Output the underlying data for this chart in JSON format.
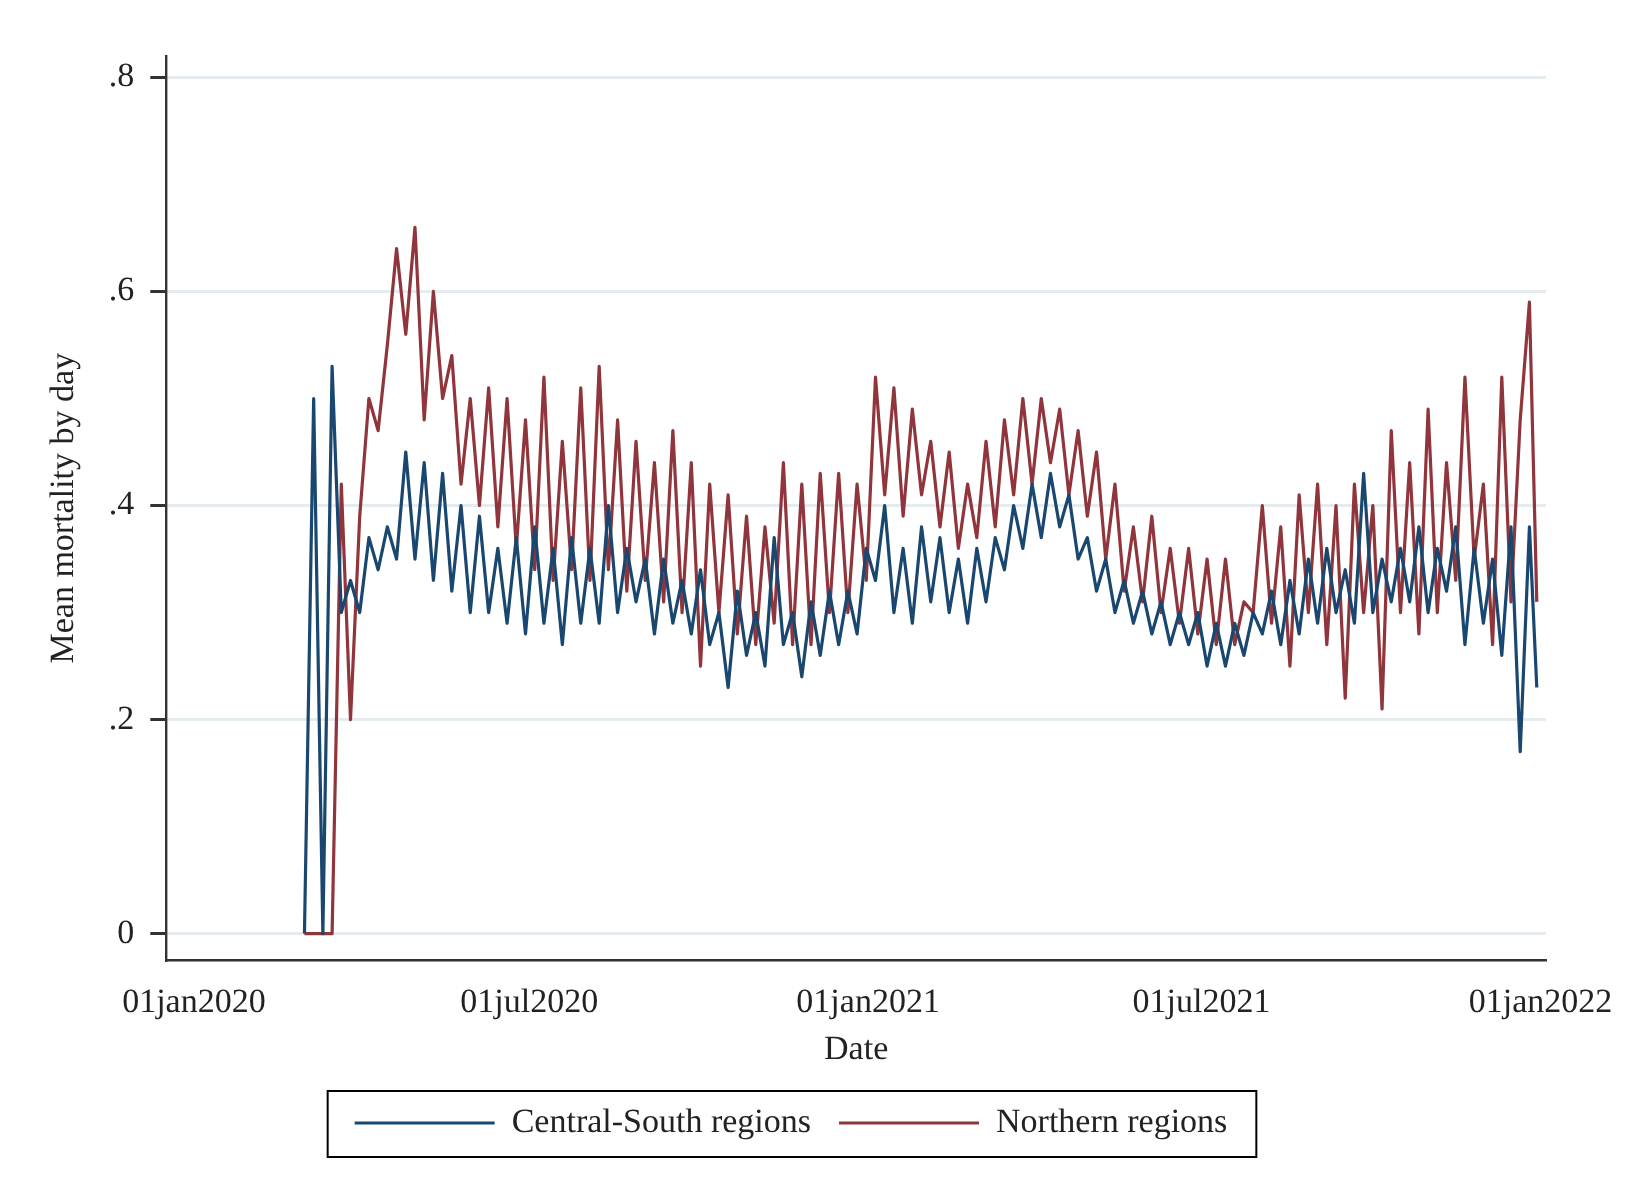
{
  "chart_data": {
    "type": "line",
    "xlabel": "Date",
    "ylabel": "Mean mortality by day",
    "x": [
      "2020-03-01",
      "2020-03-06",
      "2020-03-11",
      "2020-03-16",
      "2020-03-21",
      "2020-03-26",
      "2020-03-31",
      "2020-04-05",
      "2020-04-10",
      "2020-04-15",
      "2020-04-20",
      "2020-04-25",
      "2020-04-30",
      "2020-05-05",
      "2020-05-10",
      "2020-05-15",
      "2020-05-20",
      "2020-05-25",
      "2020-05-30",
      "2020-06-04",
      "2020-06-09",
      "2020-06-14",
      "2020-06-19",
      "2020-06-24",
      "2020-06-29",
      "2020-07-04",
      "2020-07-09",
      "2020-07-14",
      "2020-07-19",
      "2020-07-24",
      "2020-07-29",
      "2020-08-03",
      "2020-08-08",
      "2020-08-13",
      "2020-08-18",
      "2020-08-23",
      "2020-08-28",
      "2020-09-02",
      "2020-09-07",
      "2020-09-12",
      "2020-09-17",
      "2020-09-22",
      "2020-09-27",
      "2020-10-02",
      "2020-10-07",
      "2020-10-12",
      "2020-10-17",
      "2020-10-22",
      "2020-10-27",
      "2020-11-01",
      "2020-11-06",
      "2020-11-11",
      "2020-11-16",
      "2020-11-21",
      "2020-11-26",
      "2020-12-01",
      "2020-12-06",
      "2020-12-11",
      "2020-12-16",
      "2020-12-21",
      "2020-12-26",
      "2020-12-31",
      "2021-01-05",
      "2021-01-10",
      "2021-01-15",
      "2021-01-20",
      "2021-01-25",
      "2021-01-30",
      "2021-02-04",
      "2021-02-09",
      "2021-02-14",
      "2021-02-19",
      "2021-02-24",
      "2021-03-01",
      "2021-03-06",
      "2021-03-11",
      "2021-03-16",
      "2021-03-21",
      "2021-03-26",
      "2021-03-31",
      "2021-04-05",
      "2021-04-10",
      "2021-04-15",
      "2021-04-20",
      "2021-04-25",
      "2021-04-30",
      "2021-05-05",
      "2021-05-10",
      "2021-05-15",
      "2021-05-20",
      "2021-05-25",
      "2021-05-30",
      "2021-06-04",
      "2021-06-09",
      "2021-06-14",
      "2021-06-19",
      "2021-06-24",
      "2021-06-29",
      "2021-07-04",
      "2021-07-09",
      "2021-07-14",
      "2021-07-19",
      "2021-07-24",
      "2021-07-29",
      "2021-08-03",
      "2021-08-08",
      "2021-08-13",
      "2021-08-18",
      "2021-08-23",
      "2021-08-28",
      "2021-09-02",
      "2021-09-07",
      "2021-09-12",
      "2021-09-17",
      "2021-09-22",
      "2021-09-27",
      "2021-10-02",
      "2021-10-07",
      "2021-10-12",
      "2021-10-17",
      "2021-10-22",
      "2021-10-27",
      "2021-11-01",
      "2021-11-06",
      "2021-11-11",
      "2021-11-16",
      "2021-11-21",
      "2021-11-26",
      "2021-12-01",
      "2021-12-06",
      "2021-12-11",
      "2021-12-16",
      "2021-12-21",
      "2021-12-26",
      "2021-12-30"
    ],
    "series": [
      {
        "name": "Central-South regions",
        "color": "#1a476f",
        "values": [
          0,
          0.5,
          0,
          0.53,
          0.3,
          0.33,
          0.3,
          0.37,
          0.34,
          0.38,
          0.35,
          0.45,
          0.35,
          0.44,
          0.33,
          0.43,
          0.32,
          0.4,
          0.3,
          0.39,
          0.3,
          0.36,
          0.29,
          0.37,
          0.28,
          0.38,
          0.29,
          0.36,
          0.27,
          0.37,
          0.29,
          0.36,
          0.29,
          0.4,
          0.3,
          0.36,
          0.31,
          0.35,
          0.28,
          0.35,
          0.29,
          0.33,
          0.28,
          0.34,
          0.27,
          0.3,
          0.23,
          0.32,
          0.26,
          0.3,
          0.25,
          0.37,
          0.27,
          0.3,
          0.24,
          0.31,
          0.26,
          0.32,
          0.27,
          0.32,
          0.28,
          0.36,
          0.33,
          0.4,
          0.3,
          0.36,
          0.29,
          0.38,
          0.31,
          0.37,
          0.3,
          0.35,
          0.29,
          0.36,
          0.31,
          0.37,
          0.34,
          0.4,
          0.36,
          0.42,
          0.37,
          0.43,
          0.38,
          0.41,
          0.35,
          0.37,
          0.32,
          0.35,
          0.3,
          0.33,
          0.29,
          0.32,
          0.28,
          0.31,
          0.27,
          0.3,
          0.27,
          0.3,
          0.25,
          0.29,
          0.25,
          0.29,
          0.26,
          0.3,
          0.28,
          0.32,
          0.27,
          0.33,
          0.28,
          0.35,
          0.29,
          0.36,
          0.3,
          0.34,
          0.29,
          0.43,
          0.3,
          0.35,
          0.31,
          0.36,
          0.31,
          0.38,
          0.3,
          0.36,
          0.32,
          0.38,
          0.27,
          0.36,
          0.29,
          0.35,
          0.26,
          0.38,
          0.17,
          0.38,
          0.23
        ]
      },
      {
        "name": "Northern regions",
        "color": "#90353b",
        "values": [
          0,
          0,
          0,
          0,
          0.42,
          0.2,
          0.39,
          0.5,
          0.47,
          0.55,
          0.64,
          0.56,
          0.66,
          0.48,
          0.6,
          0.5,
          0.54,
          0.42,
          0.5,
          0.4,
          0.51,
          0.38,
          0.5,
          0.36,
          0.48,
          0.34,
          0.52,
          0.33,
          0.46,
          0.34,
          0.51,
          0.33,
          0.53,
          0.34,
          0.48,
          0.32,
          0.46,
          0.33,
          0.44,
          0.31,
          0.47,
          0.3,
          0.44,
          0.25,
          0.42,
          0.3,
          0.41,
          0.28,
          0.39,
          0.27,
          0.38,
          0.29,
          0.44,
          0.27,
          0.42,
          0.27,
          0.43,
          0.3,
          0.43,
          0.3,
          0.42,
          0.33,
          0.52,
          0.41,
          0.51,
          0.39,
          0.49,
          0.41,
          0.46,
          0.38,
          0.45,
          0.36,
          0.42,
          0.37,
          0.46,
          0.38,
          0.48,
          0.41,
          0.5,
          0.42,
          0.5,
          0.44,
          0.49,
          0.41,
          0.47,
          0.39,
          0.45,
          0.35,
          0.42,
          0.32,
          0.38,
          0.31,
          0.39,
          0.3,
          0.36,
          0.29,
          0.36,
          0.28,
          0.35,
          0.27,
          0.35,
          0.27,
          0.31,
          0.3,
          0.4,
          0.29,
          0.38,
          0.25,
          0.41,
          0.3,
          0.42,
          0.27,
          0.4,
          0.22,
          0.42,
          0.3,
          0.4,
          0.21,
          0.47,
          0.3,
          0.44,
          0.28,
          0.49,
          0.3,
          0.44,
          0.33,
          0.52,
          0.35,
          0.42,
          0.27,
          0.52,
          0.31,
          0.48,
          0.59,
          0.31
        ]
      }
    ],
    "xlim": [
      "2019-12-17",
      "2022-01-04"
    ],
    "xticks": [
      {
        "value": "2020-01-01",
        "label": "01jan2020"
      },
      {
        "value": "2020-07-01",
        "label": "01jul2020"
      },
      {
        "value": "2021-01-01",
        "label": "01jan2021"
      },
      {
        "value": "2021-07-01",
        "label": "01jul2021"
      },
      {
        "value": "2022-01-01",
        "label": "01jan2022"
      }
    ],
    "ylim": [
      -0.025,
      0.82
    ],
    "yticks": [
      0,
      {
        "value": 0.2,
        "label": ".2"
      },
      {
        "value": 0.4,
        "label": ".4"
      },
      {
        "value": 0.6,
        "label": ".6"
      },
      {
        "value": 0.8,
        "label": ".8"
      }
    ],
    "grid": "y",
    "legend": "bottom",
    "marker": "none",
    "line_style": "solid"
  }
}
